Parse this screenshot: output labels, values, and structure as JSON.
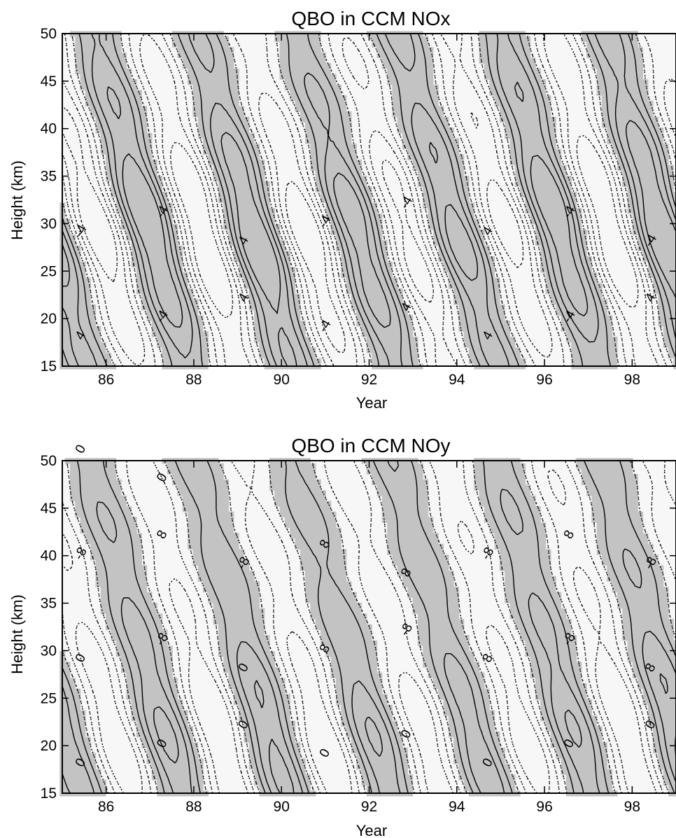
{
  "chart_data": [
    {
      "type": "contour",
      "title": "QBO in CCM NOx",
      "xlabel": "Year",
      "ylabel": "Height (km)",
      "xlim": [
        85,
        99
      ],
      "ylim": [
        15,
        50
      ],
      "xticks": [
        "86",
        "88",
        "90",
        "92",
        "94",
        "96",
        "98"
      ],
      "yticks": [
        "15",
        "20",
        "25",
        "30",
        "35",
        "40",
        "45",
        "50"
      ],
      "contour_levels": [
        -12,
        -8,
        -4,
        0,
        4,
        8,
        12
      ],
      "contour_labels": [
        "4",
        "-4",
        "4",
        "-4",
        "4",
        "4",
        "-4",
        "4",
        "-4",
        "-4",
        "4",
        "-4",
        "-4",
        "4",
        "-4",
        "-4"
      ],
      "shading": "positive anomalies shaded grey; negative contours dotted",
      "colors": {
        "shade": "#c3c3c3",
        "background": "#f7f7f7",
        "line": "#000000"
      }
    },
    {
      "type": "contour",
      "title": "QBO in CCM NOy",
      "xlabel": "Year",
      "ylabel": "Height (km)",
      "xlim": [
        85,
        99
      ],
      "ylim": [
        15,
        50
      ],
      "xticks": [
        "86",
        "88",
        "90",
        "92",
        "94",
        "96",
        "98"
      ],
      "yticks": [
        "15",
        "20",
        "25",
        "30",
        "35",
        "40",
        "45",
        "50"
      ],
      "contour_levels": [
        -16,
        -8,
        0,
        8,
        16,
        24
      ],
      "contour_labels": [
        "0",
        "0",
        "0",
        "0",
        "0",
        "0",
        "0",
        "0",
        "0",
        "-8",
        "0",
        "8",
        "-8",
        "8",
        "-8",
        "8",
        "-8",
        "8",
        "-8",
        "8",
        "8",
        "-8",
        "8",
        "-8",
        "0",
        "0"
      ],
      "shading": "positive anomalies shaded grey; negative contours dotted",
      "colors": {
        "shade": "#c3c3c3",
        "background": "#f7f7f7",
        "line": "#000000"
      }
    }
  ]
}
